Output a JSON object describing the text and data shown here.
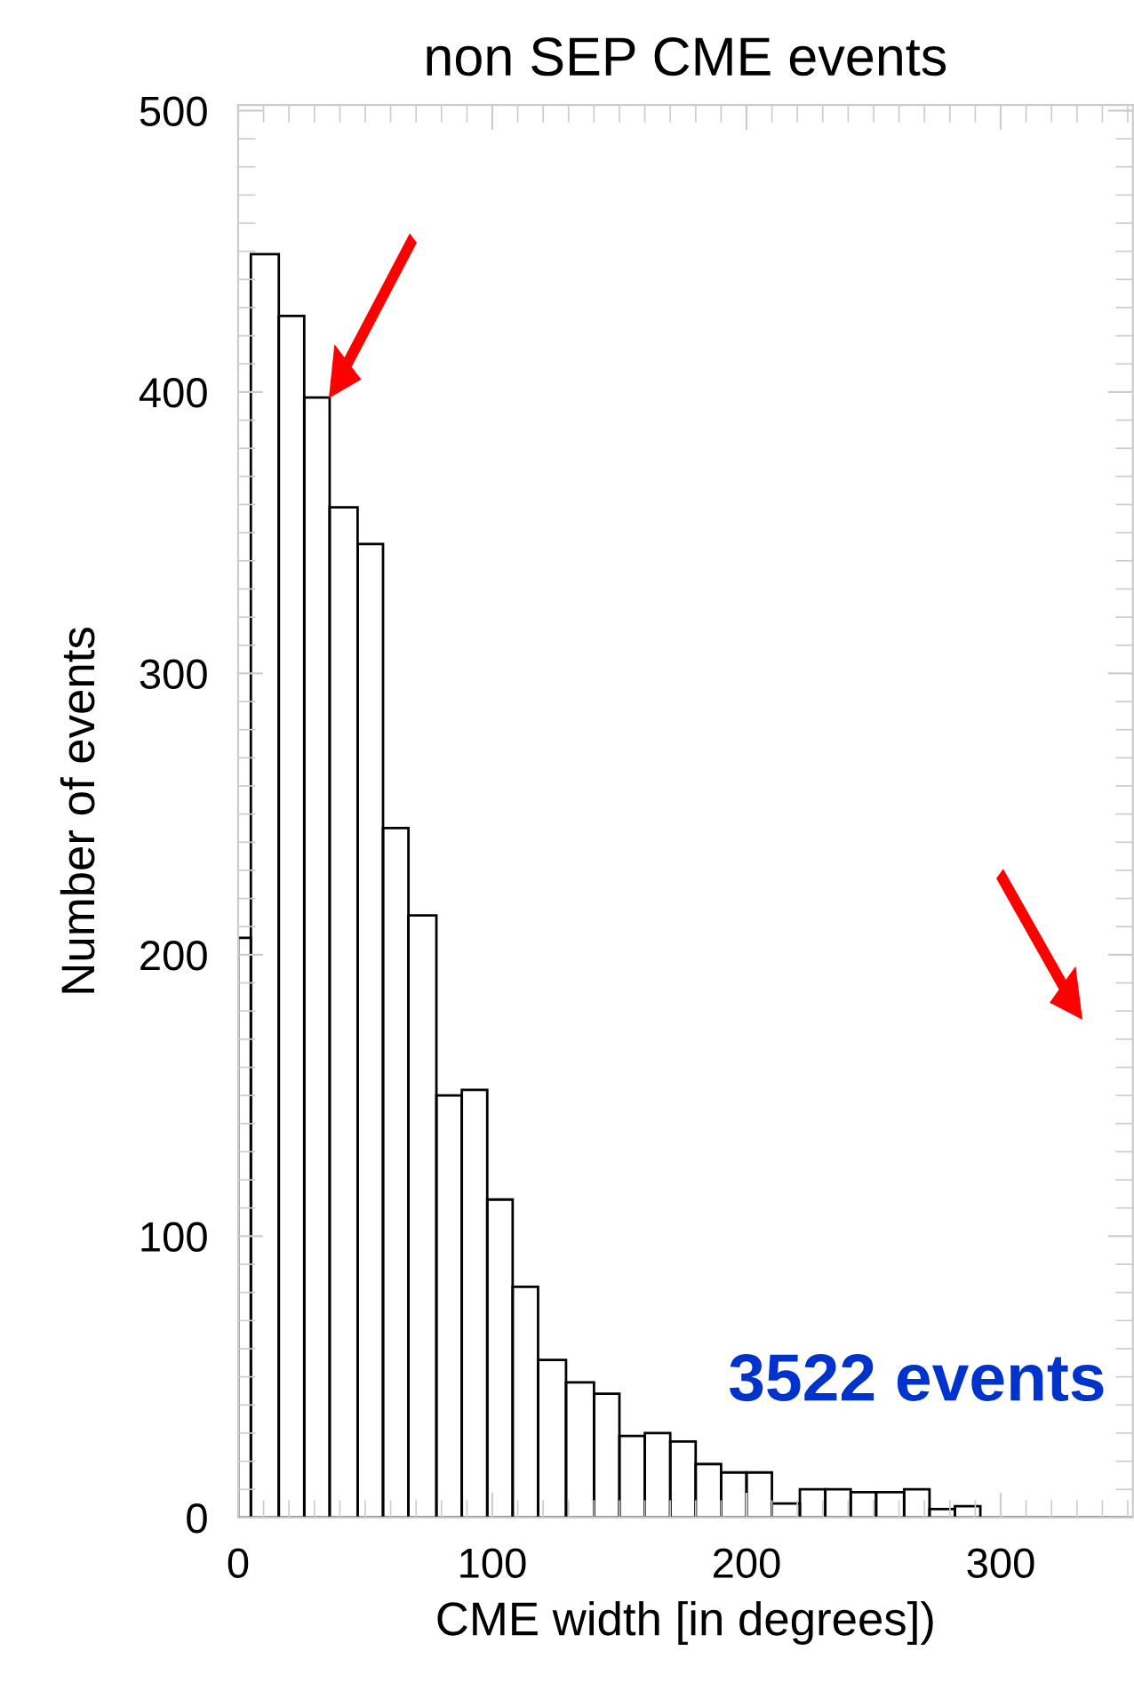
{
  "chart_data": {
    "type": "histogram",
    "title": "non SEP CME events",
    "xlabel": "CME width [in degrees])",
    "ylabel": "Number of events",
    "bins": [
      0,
      5,
      16,
      26,
      36,
      47,
      57,
      67,
      78,
      88,
      98,
      108,
      118,
      129,
      140,
      150,
      160,
      170,
      180,
      190,
      200,
      210,
      221,
      231,
      241,
      251,
      262,
      272,
      282,
      292,
      352
    ],
    "values": [
      206,
      449,
      427,
      398,
      359,
      346,
      245,
      214,
      150,
      152,
      113,
      82,
      56,
      48,
      44,
      29,
      30,
      27,
      19,
      16,
      16,
      5,
      10,
      10,
      9,
      9,
      10,
      3,
      4,
      0
    ],
    "color": "#000000",
    "xlim": [
      0,
      352
    ],
    "xticks": [
      0,
      100,
      200,
      300
    ],
    "ylim": [
      0,
      502
    ],
    "yticks": [
      0,
      100,
      200,
      300,
      400,
      500
    ],
    "grid": false,
    "legend": false,
    "annotations": [
      "3522 events"
    ]
  }
}
